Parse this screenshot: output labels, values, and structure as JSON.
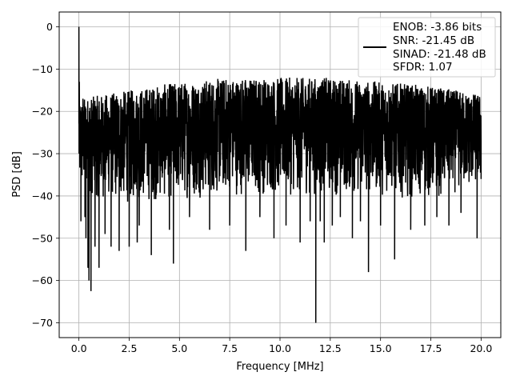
{
  "chart_data": {
    "type": "line",
    "xlabel": "Frequency [MHz]",
    "ylabel": "PSD [dB]",
    "xlim": [
      -0.98,
      20.98
    ],
    "ylim": [
      -73.5,
      3.5
    ],
    "x_ticks": [
      0.0,
      2.5,
      5.0,
      7.5,
      10.0,
      12.5,
      15.0,
      17.5,
      20.0
    ],
    "x_tick_labels": [
      "0.0",
      "2.5",
      "5.0",
      "7.5",
      "10.0",
      "12.5",
      "15.0",
      "17.5",
      "20.0"
    ],
    "y_ticks": [
      0,
      -10,
      -20,
      -30,
      -40,
      -50,
      -60,
      -70
    ],
    "y_tick_labels": [
      "0",
      "−10",
      "−20",
      "−30",
      "−40",
      "−50",
      "−60",
      "−70"
    ],
    "grid": true,
    "legend_position": "top-right",
    "series": [
      {
        "name": "ENOB: -3.86 bits\nSNR: -21.45 dB\nSINAD: -21.48 dB\nSFDR: 1.07",
        "legend_lines": [
          "ENOB: -3.86 bits",
          "SNR: -21.45 dB",
          "SINAD: -21.48 dB",
          "SFDR: 1.07"
        ],
        "color": "#000000",
        "x_range": [
          0.0,
          20.0
        ],
        "noise_band_upper": [
          [
            0.0,
            -17
          ],
          [
            2.5,
            -15
          ],
          [
            5.0,
            -13
          ],
          [
            7.5,
            -12
          ],
          [
            10.0,
            -12
          ],
          [
            12.5,
            -12
          ],
          [
            15.0,
            -13
          ],
          [
            17.5,
            -14
          ],
          [
            20.0,
            -16
          ]
        ],
        "noise_band_lower": [
          [
            0.0,
            -40
          ],
          [
            2.5,
            -42
          ],
          [
            5.0,
            -41
          ],
          [
            7.5,
            -40
          ],
          [
            10.0,
            -40
          ],
          [
            12.5,
            -40
          ],
          [
            15.0,
            -40
          ],
          [
            17.5,
            -41
          ],
          [
            20.0,
            -38
          ]
        ],
        "points": [
          [
            0.0,
            0
          ],
          [
            0.02,
            -13
          ],
          [
            0.05,
            -28
          ],
          [
            0.1,
            -46
          ],
          [
            0.2,
            -17
          ],
          [
            0.3,
            -45
          ],
          [
            0.35,
            -50
          ],
          [
            0.45,
            -57
          ],
          [
            0.5,
            -60
          ],
          [
            0.6,
            -62.5
          ],
          [
            0.8,
            -52
          ],
          [
            1.0,
            -57
          ],
          [
            1.3,
            -49
          ],
          [
            1.6,
            -52
          ],
          [
            2.0,
            -53
          ],
          [
            2.5,
            -52
          ],
          [
            2.9,
            -51
          ],
          [
            3.0,
            -47
          ],
          [
            3.6,
            -54
          ],
          [
            4.5,
            -48
          ],
          [
            4.7,
            -56
          ],
          [
            5.5,
            -45
          ],
          [
            6.5,
            -48
          ],
          [
            7.5,
            -47
          ],
          [
            8.3,
            -53
          ],
          [
            9.0,
            -45
          ],
          [
            9.7,
            -50
          ],
          [
            10.3,
            -47
          ],
          [
            11.0,
            -51
          ],
          [
            11.5,
            -46
          ],
          [
            11.78,
            -70
          ],
          [
            12.0,
            -46
          ],
          [
            12.2,
            -51
          ],
          [
            12.6,
            -47
          ],
          [
            13.0,
            -45
          ],
          [
            13.6,
            -50
          ],
          [
            14.0,
            -46
          ],
          [
            14.4,
            -58
          ],
          [
            15.0,
            -47
          ],
          [
            15.7,
            -55
          ],
          [
            16.5,
            -48
          ],
          [
            17.2,
            -47
          ],
          [
            17.8,
            -45
          ],
          [
            18.4,
            -47
          ],
          [
            19.0,
            -44
          ],
          [
            19.8,
            -50
          ],
          [
            20.0,
            -36
          ]
        ]
      }
    ]
  }
}
